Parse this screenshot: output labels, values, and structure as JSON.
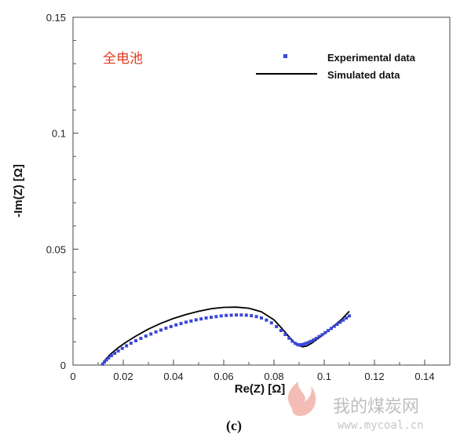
{
  "chart_data": {
    "type": "scatter",
    "xlabel": "Re(Z) [Ω]",
    "ylabel": "-Im(Z) [Ω]",
    "xlim": [
      0,
      0.15
    ],
    "ylim": [
      0,
      0.15
    ],
    "x_ticks": [
      "0",
      "0.02",
      "0.04",
      "0.06",
      "0.08",
      "0.1",
      "0.12",
      "0.14"
    ],
    "x_tick_values": [
      0,
      0.02,
      0.04,
      0.06,
      0.08,
      0.1,
      0.12,
      0.14
    ],
    "y_ticks": [
      "0",
      "0.05",
      "0.1",
      "0.15"
    ],
    "y_tick_values": [
      0,
      0.05,
      0.1,
      0.15
    ],
    "grid": false,
    "legend_position": "top-right",
    "annotation": "全电池",
    "annotation_color": "#e03a1e",
    "series": [
      {
        "name": "Experimental data",
        "style": "markers",
        "color": "#3b47d6",
        "x": [
          0.0118,
          0.0125,
          0.0133,
          0.0142,
          0.0153,
          0.0166,
          0.018,
          0.0196,
          0.0213,
          0.0231,
          0.025,
          0.027,
          0.029,
          0.031,
          0.033,
          0.035,
          0.037,
          0.039,
          0.041,
          0.043,
          0.045,
          0.047,
          0.049,
          0.051,
          0.053,
          0.055,
          0.057,
          0.059,
          0.061,
          0.063,
          0.065,
          0.067,
          0.069,
          0.071,
          0.073,
          0.075,
          0.077,
          0.079,
          0.081,
          0.0828,
          0.0845,
          0.086,
          0.0873,
          0.0884,
          0.0893,
          0.09,
          0.0906,
          0.0912,
          0.0919,
          0.0927,
          0.0936,
          0.0946,
          0.0957,
          0.0968,
          0.098,
          0.0992,
          0.1004,
          0.1016,
          0.1028,
          0.104,
          0.1052,
          0.1064,
          0.1076,
          0.1088,
          0.11
        ],
        "y": [
          0.0004,
          0.0013,
          0.0022,
          0.0031,
          0.0041,
          0.0051,
          0.0061,
          0.0072,
          0.0083,
          0.0094,
          0.0105,
          0.0115,
          0.0125,
          0.0134,
          0.0143,
          0.0151,
          0.0159,
          0.0166,
          0.0173,
          0.0179,
          0.0185,
          0.019,
          0.0195,
          0.0199,
          0.0203,
          0.0206,
          0.0209,
          0.0212,
          0.0214,
          0.0215,
          0.0216,
          0.0216,
          0.0215,
          0.0213,
          0.0209,
          0.0203,
          0.0194,
          0.0182,
          0.0166,
          0.0149,
          0.0132,
          0.0116,
          0.0103,
          0.0094,
          0.0089,
          0.0087,
          0.0087,
          0.0088,
          0.009,
          0.0093,
          0.0097,
          0.0102,
          0.0108,
          0.0115,
          0.0123,
          0.0131,
          0.014,
          0.0149,
          0.0158,
          0.0167,
          0.0176,
          0.0185,
          0.0194,
          0.0203,
          0.0212
        ]
      },
      {
        "name": "Simulated data",
        "style": "line",
        "color": "#000000",
        "x": [
          0.0118,
          0.013,
          0.015,
          0.018,
          0.021,
          0.025,
          0.03,
          0.035,
          0.04,
          0.045,
          0.05,
          0.055,
          0.06,
          0.065,
          0.07,
          0.075,
          0.08,
          0.083,
          0.086,
          0.088,
          0.09,
          0.0915,
          0.093,
          0.095,
          0.098,
          0.101,
          0.104,
          0.107,
          0.11
        ],
        "y": [
          0.0005,
          0.0025,
          0.0048,
          0.0075,
          0.0098,
          0.0125,
          0.0155,
          0.018,
          0.0201,
          0.0218,
          0.0232,
          0.0243,
          0.0249,
          0.025,
          0.0245,
          0.023,
          0.0195,
          0.016,
          0.0122,
          0.0098,
          0.0083,
          0.0079,
          0.0082,
          0.0094,
          0.0118,
          0.0143,
          0.017,
          0.0198,
          0.0232
        ]
      }
    ]
  },
  "caption": "(c)",
  "watermark": {
    "cn": "我的煤炭网",
    "url": "www.mycoal.cn"
  }
}
